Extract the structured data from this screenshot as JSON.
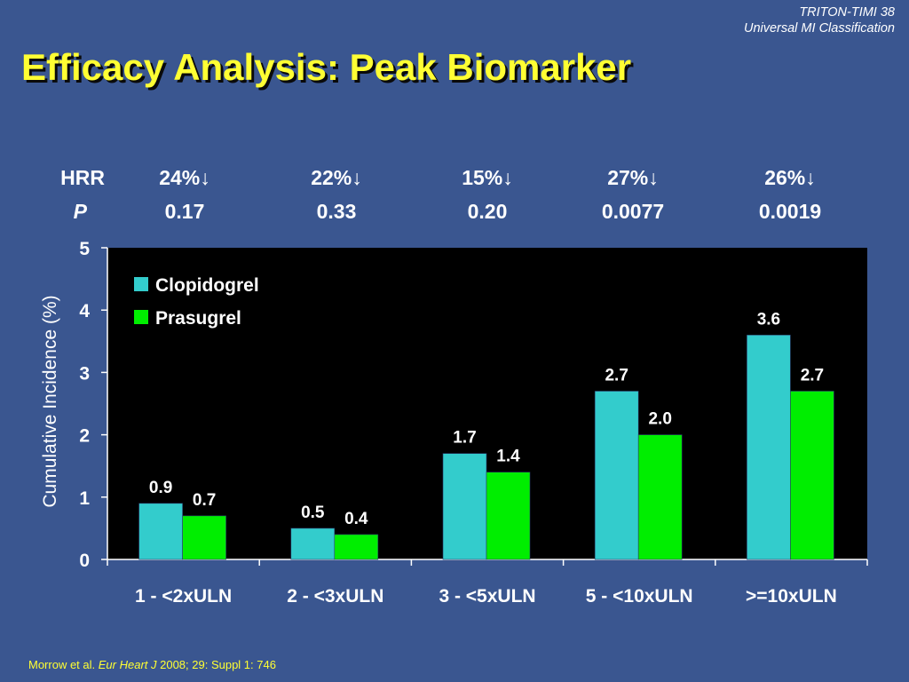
{
  "header": {
    "source_line1": "TRITON-TIMI 38",
    "source_line2": "Universal MI Classification",
    "title": "Efficacy Analysis: Peak Biomarker"
  },
  "stats": {
    "hrr_label": "HRR",
    "p_label": "P",
    "hrr": [
      "24%↓",
      "22%↓",
      "15%↓",
      "27%↓",
      "26%↓"
    ],
    "p": [
      "0.17",
      "0.33",
      "0.20",
      "0.0077",
      "0.0019"
    ]
  },
  "colors": {
    "clopidogrel": "#33cccc",
    "prasugrel": "#00ee00",
    "plot_bg": "#000000",
    "title": "#ffff33"
  },
  "chart_data": {
    "type": "bar",
    "categories": [
      "1 - <2xULN",
      "2 - <3xULN",
      "3 - <5xULN",
      "5 - <10xULN",
      ">=10xULN"
    ],
    "series": [
      {
        "name": "Clopidogrel",
        "values": [
          0.9,
          0.5,
          1.7,
          2.7,
          3.6
        ],
        "labels": [
          "0.9",
          "0.5",
          "1.7",
          "2.7",
          "3.6"
        ]
      },
      {
        "name": "Prasugrel",
        "values": [
          0.7,
          0.4,
          1.4,
          2.0,
          2.7
        ],
        "labels": [
          "0.7",
          "0.4",
          "1.4",
          "2.0",
          "2.7"
        ]
      }
    ],
    "ylabel": "Cumulative Incidence (%)",
    "ylim": [
      0,
      5
    ],
    "yticks": [
      "0",
      "1",
      "2",
      "3",
      "4",
      "5"
    ],
    "legend_position": "top-left",
    "grid": false
  },
  "footer": {
    "authors": "Morrow et al. ",
    "journal": "Eur Heart J",
    "citation": " 2008; 29: Suppl 1: 746"
  }
}
